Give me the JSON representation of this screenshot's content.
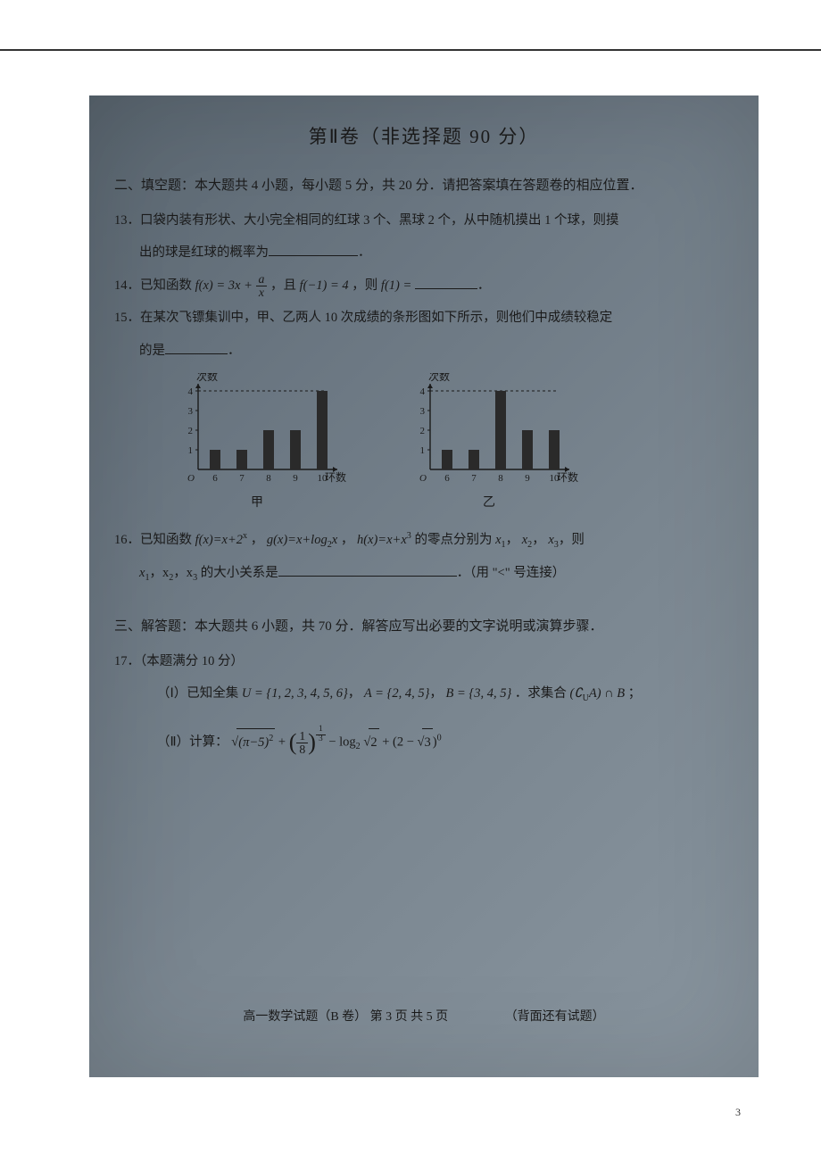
{
  "section_title": "第Ⅱ卷（非选择题  90 分）",
  "part2": {
    "header": "二、填空题：本大题共 4 小题，每小题 5 分，共 20 分．请把答案填在答题卷的相应位置．",
    "q13": {
      "num": "13．",
      "text_a": "口袋内装有形状、大小完全相同的红球 3 个、黑球 2 个，从中随机摸出 1 个球，则摸",
      "text_b": "出的球是红球的概率为",
      "text_c": "．"
    },
    "q14": {
      "num": "14．",
      "text_a": "已知函数 ",
      "fx": "f(x) = 3x +",
      "frac_num": "a",
      "frac_den": "x",
      "text_b": "，且 ",
      "cond": "f(−1) = 4",
      "text_c": "，则 ",
      "ask": "f(1) = ",
      "text_d": "．"
    },
    "q15": {
      "num": "15．",
      "text_a": "在某次飞镖集训中，甲、乙两人 10 次成绩的条形图如下所示，则他们中成绩较稳定",
      "text_b": "的是",
      "text_c": "．"
    },
    "charts": {
      "y_label": "次数",
      "x_label": "环数",
      "x_ticks": [
        6,
        7,
        8,
        9,
        10
      ],
      "y_ticks": [
        1,
        2,
        3,
        4
      ],
      "bar_color": "#2a2a2a",
      "axis_color": "#1a1a1a",
      "dash_color": "#1a1a1a",
      "jia_label": "甲",
      "yi_label": "乙",
      "jia_values": [
        1,
        1,
        2,
        2,
        4
      ],
      "yi_values": [
        1,
        1,
        4,
        2,
        2
      ]
    },
    "q16": {
      "num": "16．",
      "text_a": "已知函数 ",
      "f": "f(x)=x+2",
      "f_sup": "x",
      "g": "g(x)=x+log",
      "g_sub": "2",
      "g_tail": "x",
      "h": "h(x)=x+x",
      "h_sup": "3",
      "text_b": " 的零点分别为 ",
      "x1": "x",
      "x1s": "1",
      "x2": "x",
      "x2s": "2",
      "x3": "x",
      "x3s": "3",
      "text_c": "，则",
      "line2_a": "x",
      "l2s1": "1",
      "line2_b": "，x",
      "l2s2": "2",
      "line2_c": "，x",
      "l2s3": "3",
      "text_d": " 的大小关系是",
      "text_e": "．（用 \"<\" 号连接）"
    }
  },
  "part3": {
    "header": "三、解答题：本大题共 6 小题，共 70 分．解答应写出必要的文字说明或演算步骤．",
    "q17": {
      "num": "17．",
      "title": "（本题满分 10 分）",
      "i_a": "（Ⅰ）已知全集 ",
      "U": "U = {1, 2, 3, 4, 5, 6}",
      "comma1": "，",
      "A": "A = {2, 4, 5}",
      "comma2": "，",
      "B": "B = {3, 4, 5}",
      "i_b": "．求集合 ",
      "expr1_a": "(∁",
      "expr1_sub": "U",
      "expr1_b": "A) ∩ B",
      "semicolon": " ；",
      "ii_a": "（Ⅱ）计算：",
      "sqrt_inner_a": "(π−5)",
      "sqrt_inner_sup": "2",
      "plus": " + ",
      "frac2_num": "1",
      "frac2_den": "8",
      "exp2_num": "1",
      "exp2_den": "3",
      "minus": " − log",
      "log_sub": "2",
      "sqrt2": "2",
      "plus2": " + (2 − ",
      "sqrt3": "3",
      "tail": ")",
      "tail_sup": "0"
    }
  },
  "footer": {
    "main": "高一数学试题（B 卷）  第 3 页 共 5 页",
    "note": "（背面还有试题）"
  },
  "outer_page": "3"
}
